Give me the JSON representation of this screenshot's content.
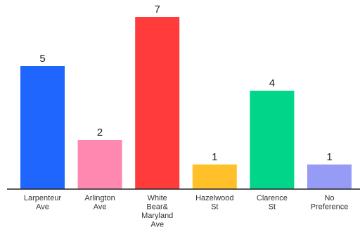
{
  "chart_data": {
    "type": "bar",
    "title": "",
    "xlabel": "",
    "ylabel": "",
    "categories": [
      [
        "Larpenteur",
        "Ave"
      ],
      [
        "Arlington",
        "Ave"
      ],
      [
        "White",
        "Bear&",
        "Maryland",
        "Ave"
      ],
      [
        "Hazelwood",
        "St"
      ],
      [
        "Clarence",
        "St"
      ],
      [
        "No",
        "Preference"
      ]
    ],
    "values": [
      5,
      2,
      7,
      1,
      4,
      1
    ],
    "colors": [
      "#1f66ff",
      "#ff88b0",
      "#ff3b3b",
      "#ffc02a",
      "#00d58a",
      "#969cf5"
    ],
    "axis_color": "#222222",
    "ylim": [
      0,
      7
    ],
    "grid": false,
    "legend": "none"
  }
}
